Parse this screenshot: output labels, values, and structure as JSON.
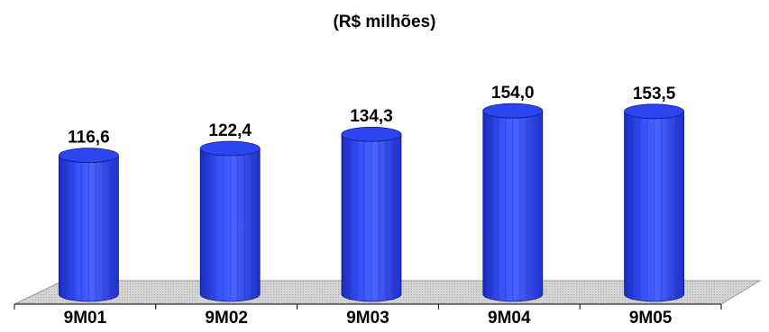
{
  "chart_data": {
    "type": "bar",
    "title": "(R$ milhões)",
    "categories": [
      "9M01",
      "9M02",
      "9M03",
      "9M04",
      "9M05"
    ],
    "values": [
      116.6,
      122.4,
      134.3,
      154.0,
      153.5
    ],
    "value_labels": [
      "116,6",
      "122,4",
      "134,3",
      "154,0",
      "153,5"
    ],
    "xlabel": "",
    "ylabel": "",
    "ylim": [
      0,
      160
    ],
    "grid": false,
    "legend": "none",
    "style": "3d-cylinder",
    "colors": {
      "bar": "#2d45f0",
      "bar_light": "#6a7dff",
      "bar_dark": "#1a2cc0",
      "floor": "#c8c8c8"
    }
  }
}
